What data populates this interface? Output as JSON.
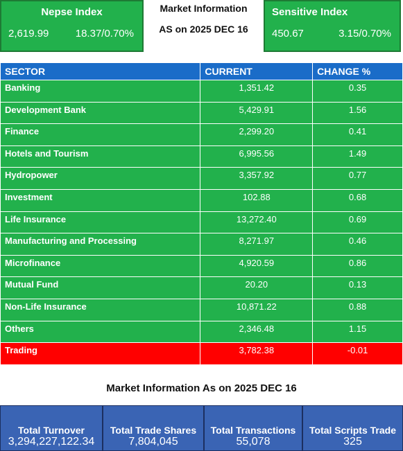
{
  "nepse": {
    "title": "Nepse Index",
    "value": "2,619.99",
    "change": "18.37/0.70%"
  },
  "market_info": {
    "line1": "Market Information",
    "line2": "AS on 2025 DEC 16"
  },
  "sensitive": {
    "title": "Sensitive Index",
    "value": "450.67",
    "change": "3.15/0.70%"
  },
  "table": {
    "headers": [
      "SECTOR",
      "CURRENT",
      "CHANGE %"
    ],
    "rows": [
      {
        "sector": "Banking",
        "current": "1,351.42",
        "change": "0.35"
      },
      {
        "sector": "Development Bank",
        "current": "5,429.91",
        "change": "1.56"
      },
      {
        "sector": "Finance",
        "current": "2,299.20",
        "change": "0.41"
      },
      {
        "sector": "Hotels and Tourism",
        "current": "6,995.56",
        "change": "1.49"
      },
      {
        "sector": "Hydropower",
        "current": "3,357.92",
        "change": "0.77"
      },
      {
        "sector": "Investment",
        "current": "102.88",
        "change": "0.68"
      },
      {
        "sector": "Life Insurance",
        "current": "13,272.40",
        "change": "0.69"
      },
      {
        "sector": "Manufacturing and Processing",
        "current": "8,271.97",
        "change": "0.46"
      },
      {
        "sector": "Microfinance",
        "current": "4,920.59",
        "change": "0.86"
      },
      {
        "sector": "Mutual Fund",
        "current": "20.20",
        "change": "0.13"
      },
      {
        "sector": "Non-Life Insurance",
        "current": "10,871.22",
        "change": "0.88"
      },
      {
        "sector": "Others",
        "current": "2,346.48",
        "change": "1.15"
      },
      {
        "sector": "Trading",
        "current": "3,782.38",
        "change": "-0.01"
      }
    ]
  },
  "summary": {
    "title": "Market Information As on 2025 DEC 16",
    "items": [
      {
        "label": "Total Turnover",
        "value": "3,294,227,122.34"
      },
      {
        "label": "Total Trade Shares",
        "value": "7,804,045"
      },
      {
        "label": "Total Transactions",
        "value": "55,078"
      },
      {
        "label": "Total Scripts Trade",
        "value": "325"
      }
    ]
  },
  "colors": {
    "positive": "#22b14c",
    "negative": "#ff0000",
    "header": "#1a6cc8",
    "summary": "#3a64b4"
  }
}
